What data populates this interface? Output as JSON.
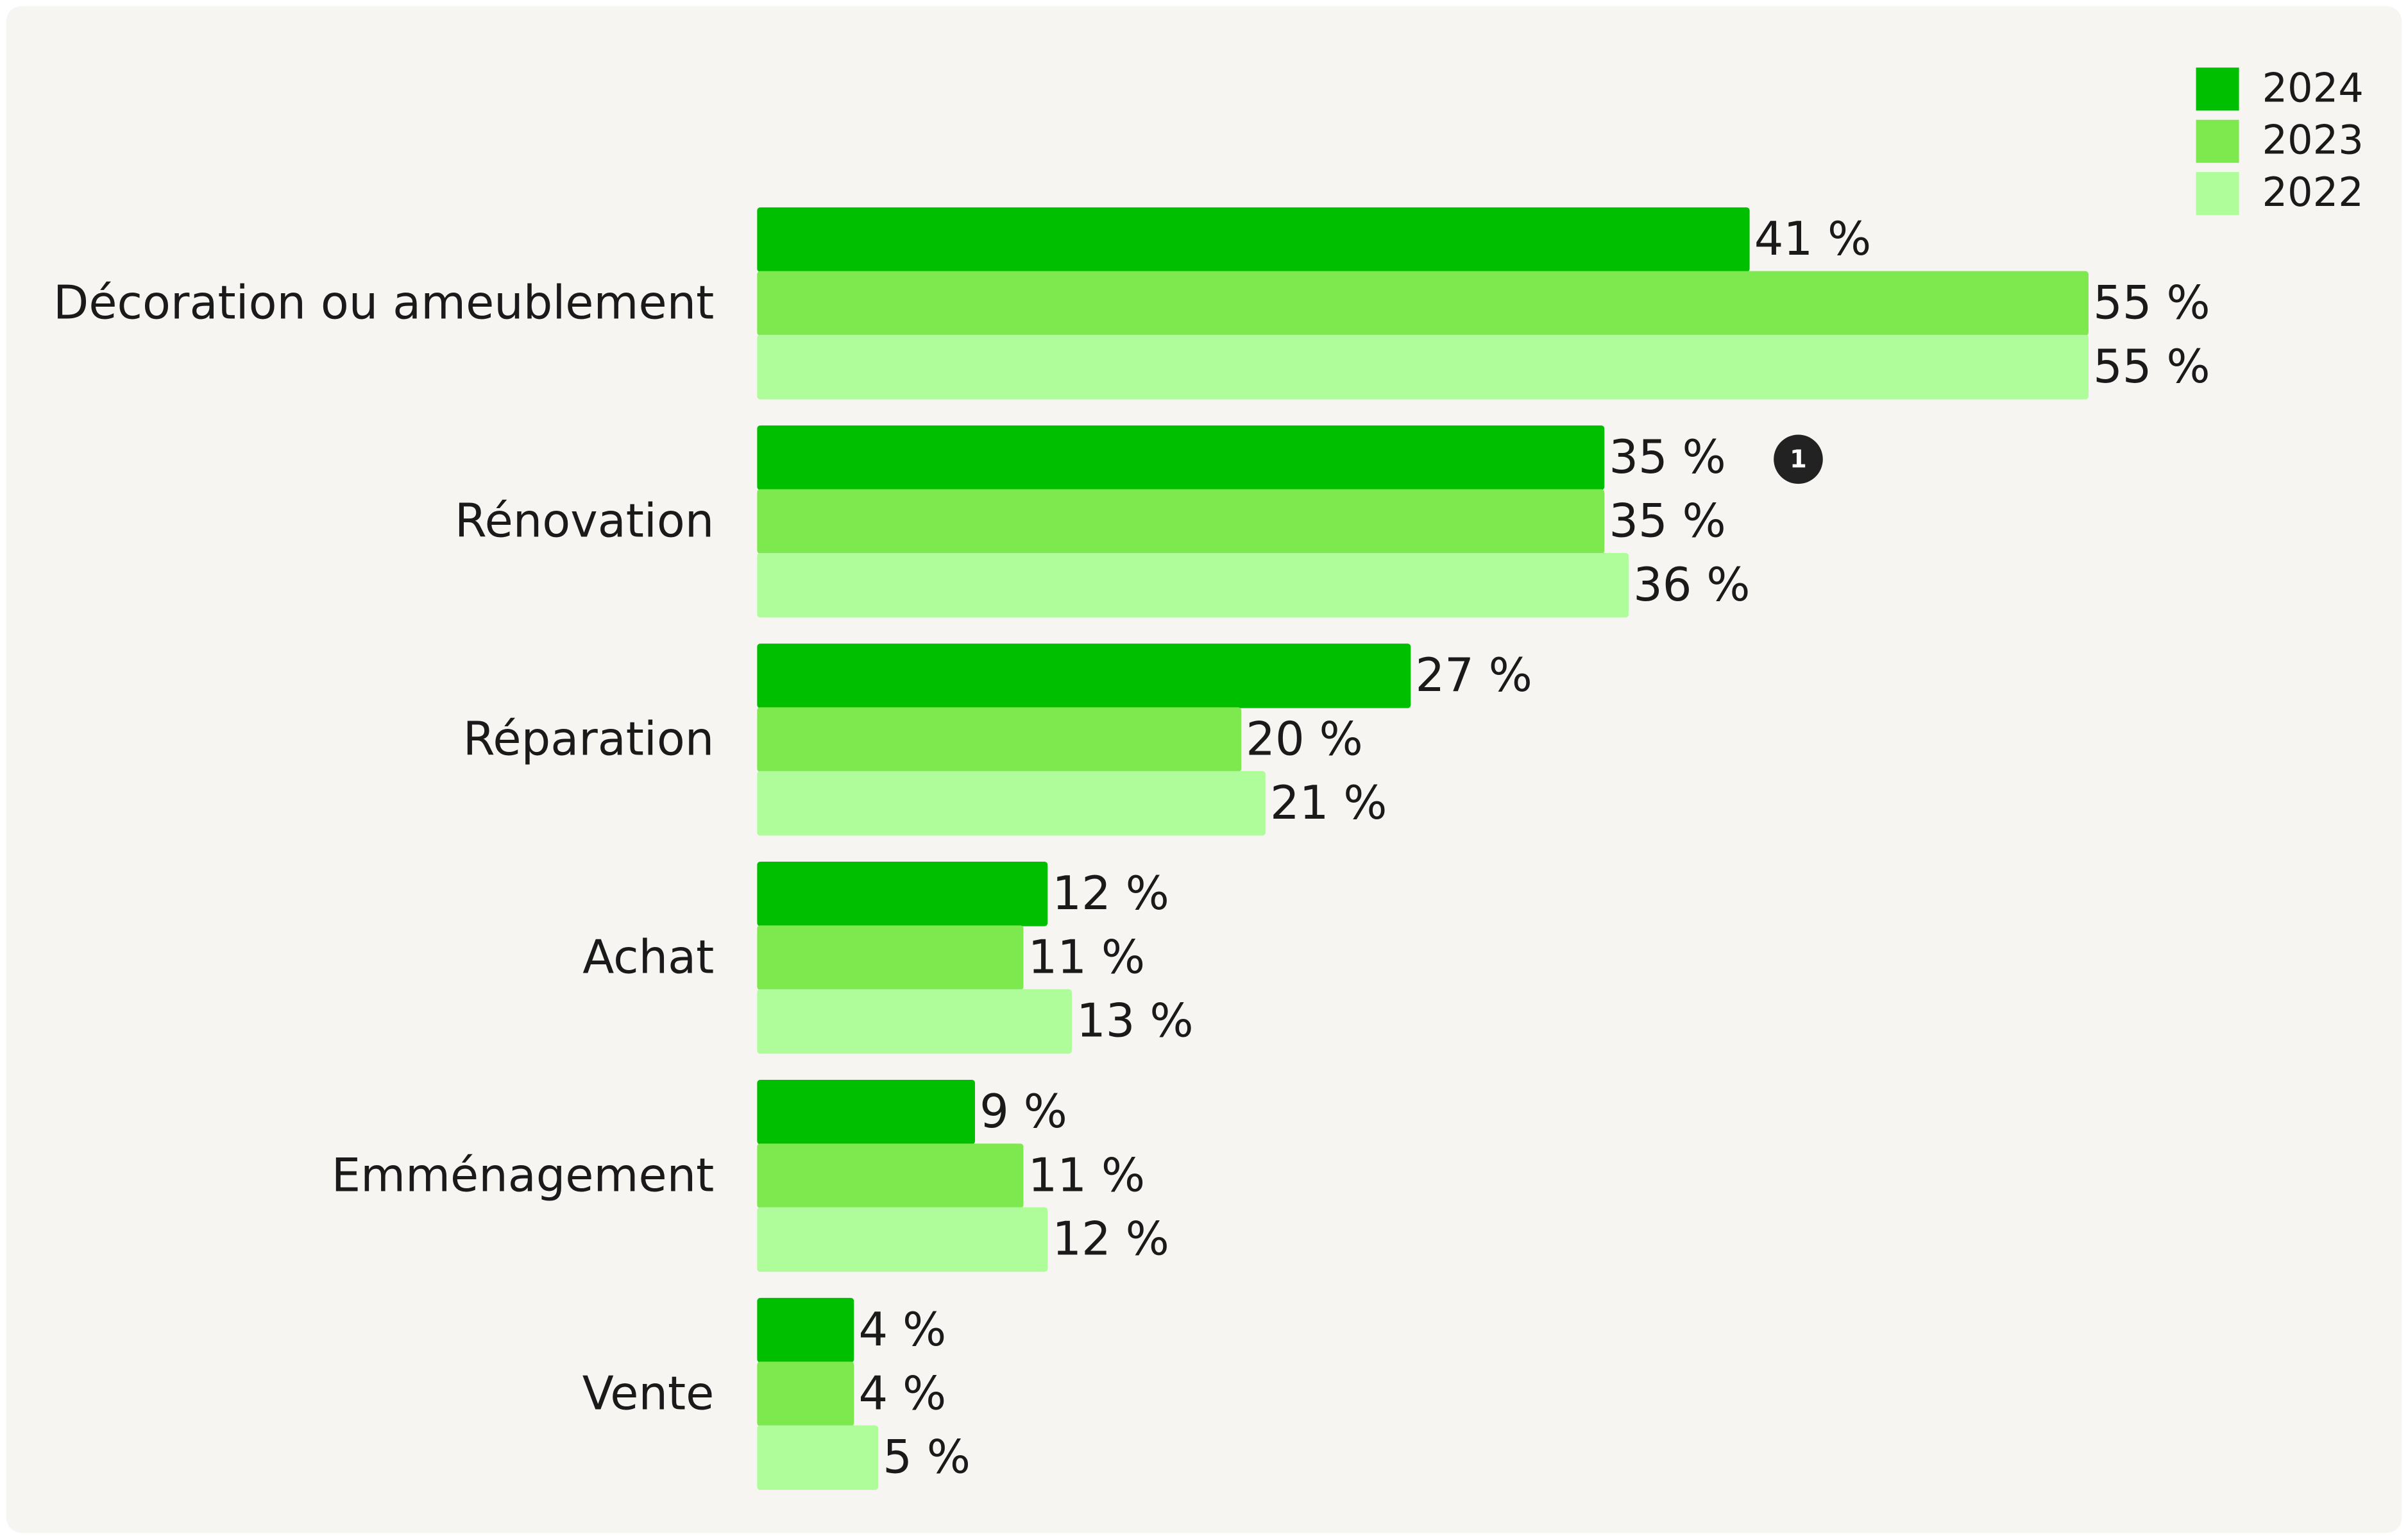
{
  "chart_data": {
    "type": "bar",
    "orientation": "horizontal",
    "categories": [
      "Décoration ou ameublement",
      "Rénovation",
      "Réparation",
      "Achat",
      "Emménagement",
      "Vente"
    ],
    "series": [
      {
        "name": "2024",
        "color": "#00bf00",
        "values": [
          41,
          35,
          27,
          12,
          9,
          4
        ],
        "value_labels": [
          "41 %",
          "35 %",
          "27 %",
          "12 %",
          "9 %",
          "4 %"
        ]
      },
      {
        "name": "2023",
        "color": "#7ee84f",
        "values": [
          55,
          35,
          20,
          11,
          11,
          4
        ],
        "value_labels": [
          "55 %",
          "35 %",
          "20 %",
          "11 %",
          "11 %",
          "4 %"
        ]
      },
      {
        "name": "2022",
        "color": "#aefc9a",
        "values": [
          55,
          36,
          21,
          13,
          12,
          5
        ],
        "value_labels": [
          "55 %",
          "36 %",
          "21 %",
          "13 %",
          "12 %",
          "5 %"
        ]
      }
    ],
    "annotations": [
      "1"
    ],
    "legend": "top-right"
  }
}
